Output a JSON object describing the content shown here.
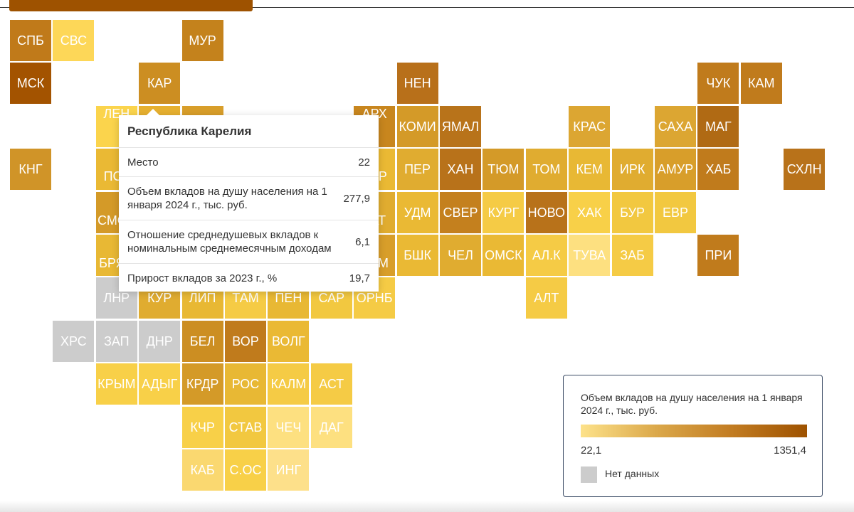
{
  "colors": {
    "no_data": "#cccccc",
    "scale_min": "#fde28a",
    "scale_max": "#9e5200"
  },
  "tiles": [
    {
      "label": "СПБ",
      "color": "#c07a1a"
    },
    {
      "label": "СВС",
      "color": "#fdd758"
    },
    {
      "label": "МУР",
      "color": "#c4821c"
    },
    {
      "label": "МСК",
      "color": "#a35300"
    },
    {
      "label": "КАР",
      "color": "#cc8e22"
    },
    {
      "label": "НЕН",
      "color": "#b8701a"
    },
    {
      "label": "ЧУК",
      "color": "#c07b1c"
    },
    {
      "label": "КАМ",
      "color": "#c07b1c"
    },
    {
      "label": "ЛЕН",
      "color": "#fbd44c"
    },
    {
      "label": "",
      "color": "#e6b030"
    },
    {
      "label": "",
      "color": "#d89e2a"
    },
    {
      "label": "АРХ",
      "color": "#c8861e"
    },
    {
      "label": "КОМИ",
      "color": "#d49a28"
    },
    {
      "label": "ЯМАЛ",
      "color": "#b8731a"
    },
    {
      "label": "КРАС",
      "color": "#dca632"
    },
    {
      "label": "САХА",
      "color": "#dca632"
    },
    {
      "label": "МАГ",
      "color": "#b06a14"
    },
    {
      "label": "КНГ",
      "color": "#d09428"
    },
    {
      "label": "ПСК",
      "color": "#eab934"
    },
    {
      "label": "КИР",
      "color": "#eab934"
    },
    {
      "label": "ПЕР",
      "color": "#e0ac30"
    },
    {
      "label": "ХАН",
      "color": "#b8721a"
    },
    {
      "label": "ТЮМ",
      "color": "#d49a28"
    },
    {
      "label": "ТОМ",
      "color": "#e0ac30"
    },
    {
      "label": "КЕМ",
      "color": "#e8b834"
    },
    {
      "label": "ИРК",
      "color": "#e0ac30"
    },
    {
      "label": "АМУР",
      "color": "#d89e2a"
    },
    {
      "label": "ХАБ",
      "color": "#c07b1c"
    },
    {
      "label": "СХЛН",
      "color": "#b8721a"
    },
    {
      "label": "СМОЛ",
      "color": "#d49a28"
    },
    {
      "label": "ТАТ",
      "color": "#e0ac30"
    },
    {
      "label": "УДМ",
      "color": "#eab934"
    },
    {
      "label": "СВЕР",
      "color": "#c4801e"
    },
    {
      "label": "КУРГ",
      "color": "#f5cb45"
    },
    {
      "label": "НОВО",
      "color": "#b8721a"
    },
    {
      "label": "ХАК",
      "color": "#f8d048"
    },
    {
      "label": "БУР",
      "color": "#f2c840"
    },
    {
      "label": "ЕВР",
      "color": "#f2c840"
    },
    {
      "label": "БРЯН",
      "color": "#e8b834"
    },
    {
      "label": "САМ",
      "color": "#d89e2a"
    },
    {
      "label": "БШК",
      "color": "#eab934"
    },
    {
      "label": "ЧЕЛ",
      "color": "#e0ac30"
    },
    {
      "label": "ОМСК",
      "color": "#eab934"
    },
    {
      "label": "АЛ.К",
      "color": "#f5cb45"
    },
    {
      "label": "ТУВА",
      "color": "#fde080"
    },
    {
      "label": "ЗАБ",
      "color": "#f5cb45"
    },
    {
      "label": "ПРИ",
      "color": "#c07b1c"
    },
    {
      "label": "ЛНР",
      "color": "#cccccc"
    },
    {
      "label": "КУР",
      "color": "#e0ac30"
    },
    {
      "label": "ЛИП",
      "color": "#e8b834"
    },
    {
      "label": "ТАМ",
      "color": "#f5cb45"
    },
    {
      "label": "ПЕН",
      "color": "#e8b834"
    },
    {
      "label": "САР",
      "color": "#f2c840"
    },
    {
      "label": "ОРНБ",
      "color": "#f5cb45"
    },
    {
      "label": "АЛТ",
      "color": "#f5cb45"
    },
    {
      "label": "ХРС",
      "color": "#cccccc"
    },
    {
      "label": "ЗАП",
      "color": "#cccccc"
    },
    {
      "label": "ДНР",
      "color": "#cccccc"
    },
    {
      "label": "БЕЛ",
      "color": "#cc8e22"
    },
    {
      "label": "ВОР",
      "color": "#c07b1c"
    },
    {
      "label": "ВОЛГ",
      "color": "#eab934"
    },
    {
      "label": "КРЫМ",
      "color": "#f8d048"
    },
    {
      "label": "АДЫГ",
      "color": "#f8d048"
    },
    {
      "label": "КРДР",
      "color": "#d49a28"
    },
    {
      "label": "РОС",
      "color": "#e8b834"
    },
    {
      "label": "КАЛМ",
      "color": "#f5cb45"
    },
    {
      "label": "АСТ",
      "color": "#f5cb45"
    },
    {
      "label": "КЧР",
      "color": "#f8d048"
    },
    {
      "label": "СТАВ",
      "color": "#f2c840"
    },
    {
      "label": "ЧЕЧ",
      "color": "#fde080"
    },
    {
      "label": "ДАГ",
      "color": "#fde080"
    },
    {
      "label": "КАБ",
      "color": "#fad870"
    },
    {
      "label": "С.ОС",
      "color": "#f8d048"
    },
    {
      "label": "ИНГ",
      "color": "#fde08a"
    }
  ],
  "tooltip": {
    "title": "Республика Карелия",
    "rows": [
      {
        "label": "Место",
        "value": "22"
      },
      {
        "label": "Объем вкладов на душу населения на 1 января 2024 г., тыс. руб.",
        "value": "277,9"
      },
      {
        "label": "Отношение среднедушевых вкладов к номинальным среднемесячным доходам",
        "value": "6,1"
      },
      {
        "label": "Прирост вкладов за 2023 г., %",
        "value": "19,7"
      }
    ]
  },
  "legend": {
    "title": "Объем вкладов на душу населения на 1 января 2024 г., тыс. руб.",
    "min": "22,1",
    "max": "1351,4",
    "no_data": "Нет данных"
  }
}
